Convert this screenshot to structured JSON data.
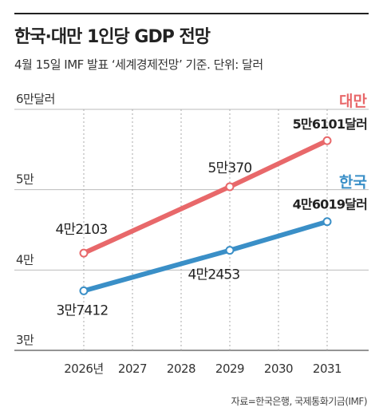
{
  "header": {
    "title": "한국·대만 1인당 GDP 전망",
    "subtitle": "4월 15일 IMF 발표 ‘세계경제전망’ 기준. 단위: 달러"
  },
  "footer": {
    "source": "자료=한국은행, 국제통화기금(IMF)"
  },
  "chart_data": {
    "type": "line",
    "x": [
      2026,
      2027,
      2028,
      2029,
      2030,
      2031
    ],
    "x_tick_labels": [
      "2026년",
      "2027",
      "2028",
      "2029",
      "2030",
      "2031"
    ],
    "ylim": [
      30000,
      60000
    ],
    "y_ticks": [
      {
        "value": 60000,
        "label": "6만달러"
      },
      {
        "value": 50000,
        "label": "5만"
      },
      {
        "value": 40000,
        "label": "4만"
      },
      {
        "value": 30000,
        "label": "3만"
      }
    ],
    "grid": true,
    "series": [
      {
        "name": "대만",
        "color": "#e8686a",
        "points": [
          {
            "x": 2026,
            "y": 42103,
            "label": "4만2103"
          },
          {
            "x": 2029,
            "y": 50370,
            "label": "5만370"
          },
          {
            "x": 2031,
            "y": 56101,
            "label": "5만6101달러"
          }
        ]
      },
      {
        "name": "한국",
        "color": "#3a8fc7",
        "points": [
          {
            "x": 2026,
            "y": 37412,
            "label": "3만7412"
          },
          {
            "x": 2029,
            "y": 42453,
            "label": "4만2453"
          },
          {
            "x": 2031,
            "y": 46019,
            "label": "4만6019달러"
          }
        ]
      }
    ]
  }
}
